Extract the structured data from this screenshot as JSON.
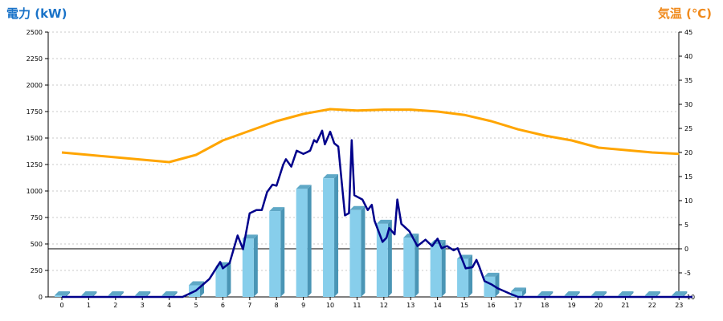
{
  "chart_data": {
    "type": "bar",
    "left_axis_title": "電力 (kW)",
    "right_axis_title": "気温 (℃)",
    "colors": {
      "bar_front": "#87ceeb",
      "bar_side": "#4a95b5",
      "bar_top": "#5fa8c6",
      "power_line": "#00008b",
      "temp_line": "#ffa500",
      "left_title": "#1a73c8",
      "right_title": "#f08a1c",
      "grid": "#c8c8c8"
    },
    "x_ticks": [
      "0",
      "1",
      "2",
      "3",
      "4",
      "5",
      "6",
      "7",
      "8",
      "9",
      "10",
      "11",
      "12",
      "13",
      "14",
      "15",
      "16",
      "17",
      "18",
      "19",
      "20",
      "21",
      "22",
      "23"
    ],
    "y_left": {
      "min": 0,
      "max": 2500,
      "ticks": [
        "0",
        "250",
        "500",
        "750",
        "1000",
        "1250",
        "1500",
        "1750",
        "2000",
        "2250",
        "2500"
      ]
    },
    "y_right": {
      "min": -10,
      "max": 45,
      "ticks": [
        "-10",
        "-5",
        "0",
        "5",
        "10",
        "15",
        "20",
        "25",
        "30",
        "35",
        "40",
        "45"
      ]
    },
    "bars": {
      "name": "",
      "values": [
        0,
        0,
        0,
        0,
        0,
        110,
        290,
        550,
        810,
        1020,
        1120,
        820,
        690,
        560,
        500,
        360,
        190,
        50,
        0,
        0,
        0,
        0,
        0,
        0
      ]
    },
    "power_line": {
      "name": "",
      "points": [
        [
          0,
          0
        ],
        [
          4.5,
          0
        ],
        [
          5,
          60
        ],
        [
          5.5,
          170
        ],
        [
          5.9,
          330
        ],
        [
          6,
          270
        ],
        [
          6.25,
          320
        ],
        [
          6.55,
          580
        ],
        [
          6.75,
          450
        ],
        [
          7,
          790
        ],
        [
          7.25,
          820
        ],
        [
          7.45,
          820
        ],
        [
          7.65,
          990
        ],
        [
          7.85,
          1060
        ],
        [
          8,
          1050
        ],
        [
          8.25,
          1250
        ],
        [
          8.35,
          1300
        ],
        [
          8.55,
          1230
        ],
        [
          8.75,
          1380
        ],
        [
          9,
          1350
        ],
        [
          9.25,
          1380
        ],
        [
          9.4,
          1480
        ],
        [
          9.5,
          1460
        ],
        [
          9.7,
          1570
        ],
        [
          9.8,
          1440
        ],
        [
          10,
          1560
        ],
        [
          10.15,
          1450
        ],
        [
          10.3,
          1420
        ],
        [
          10.55,
          770
        ],
        [
          10.7,
          790
        ],
        [
          10.8,
          1480
        ],
        [
          10.9,
          960
        ],
        [
          11.2,
          920
        ],
        [
          11.4,
          820
        ],
        [
          11.55,
          870
        ],
        [
          11.65,
          720
        ],
        [
          11.8,
          620
        ],
        [
          11.95,
          520
        ],
        [
          12.1,
          560
        ],
        [
          12.2,
          650
        ],
        [
          12.4,
          590
        ],
        [
          12.5,
          920
        ],
        [
          12.65,
          690
        ],
        [
          12.95,
          620
        ],
        [
          13.25,
          480
        ],
        [
          13.55,
          540
        ],
        [
          13.8,
          480
        ],
        [
          14,
          550
        ],
        [
          14.15,
          460
        ],
        [
          14.35,
          480
        ],
        [
          14.6,
          440
        ],
        [
          14.75,
          460
        ],
        [
          15.05,
          270
        ],
        [
          15.3,
          280
        ],
        [
          15.45,
          350
        ],
        [
          15.55,
          290
        ],
        [
          15.75,
          150
        ],
        [
          16,
          120
        ],
        [
          16.25,
          80
        ],
        [
          16.7,
          30
        ],
        [
          17,
          0
        ],
        [
          23.5,
          0
        ]
      ]
    },
    "temp_line": {
      "name": "",
      "points": [
        [
          0,
          20
        ],
        [
          1,
          19.5
        ],
        [
          2,
          19
        ],
        [
          3,
          18.5
        ],
        [
          4,
          18
        ],
        [
          5,
          19.5
        ],
        [
          6,
          22.5
        ],
        [
          7,
          24.5
        ],
        [
          8,
          26.5
        ],
        [
          9,
          28
        ],
        [
          10,
          29
        ],
        [
          11,
          28.7
        ],
        [
          12,
          28.9
        ],
        [
          13,
          28.9
        ],
        [
          14,
          28.5
        ],
        [
          15,
          27.8
        ],
        [
          16,
          26.5
        ],
        [
          17,
          24.8
        ],
        [
          18,
          23.5
        ],
        [
          19,
          22.5
        ],
        [
          20,
          21
        ],
        [
          21,
          20.5
        ],
        [
          22,
          20
        ],
        [
          23,
          19.7
        ]
      ]
    }
  }
}
